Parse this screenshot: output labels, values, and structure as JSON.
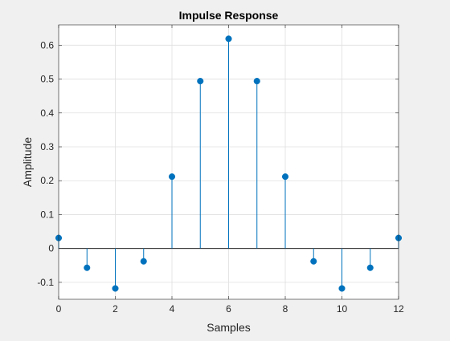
{
  "chart_data": {
    "type": "stem",
    "title": "Impulse Response",
    "xlabel": "Samples",
    "ylabel": "Amplitude",
    "xlim": [
      0,
      12
    ],
    "ylim": [
      -0.15,
      0.66
    ],
    "xticks": [
      0,
      2,
      4,
      6,
      8,
      10,
      12
    ],
    "xtick_labels": [
      "0",
      "2",
      "4",
      "6",
      "8",
      "10",
      "12"
    ],
    "yticks": [
      -0.1,
      0,
      0.1,
      0.2,
      0.3,
      0.4,
      0.5,
      0.6
    ],
    "ytick_labels": [
      "-0.1",
      "0",
      "0.1",
      "0.2",
      "0.3",
      "0.4",
      "0.5",
      "0.6"
    ],
    "grid": true,
    "baseline": 0,
    "series": [
      {
        "color": "#0072BD",
        "x": [
          0,
          1,
          2,
          3,
          4,
          5,
          6,
          7,
          8,
          9,
          10,
          11,
          12
        ],
        "values": [
          0.031,
          -0.057,
          -0.118,
          -0.038,
          0.212,
          0.494,
          0.619,
          0.494,
          0.212,
          -0.038,
          -0.118,
          -0.057,
          0.031
        ]
      }
    ]
  }
}
